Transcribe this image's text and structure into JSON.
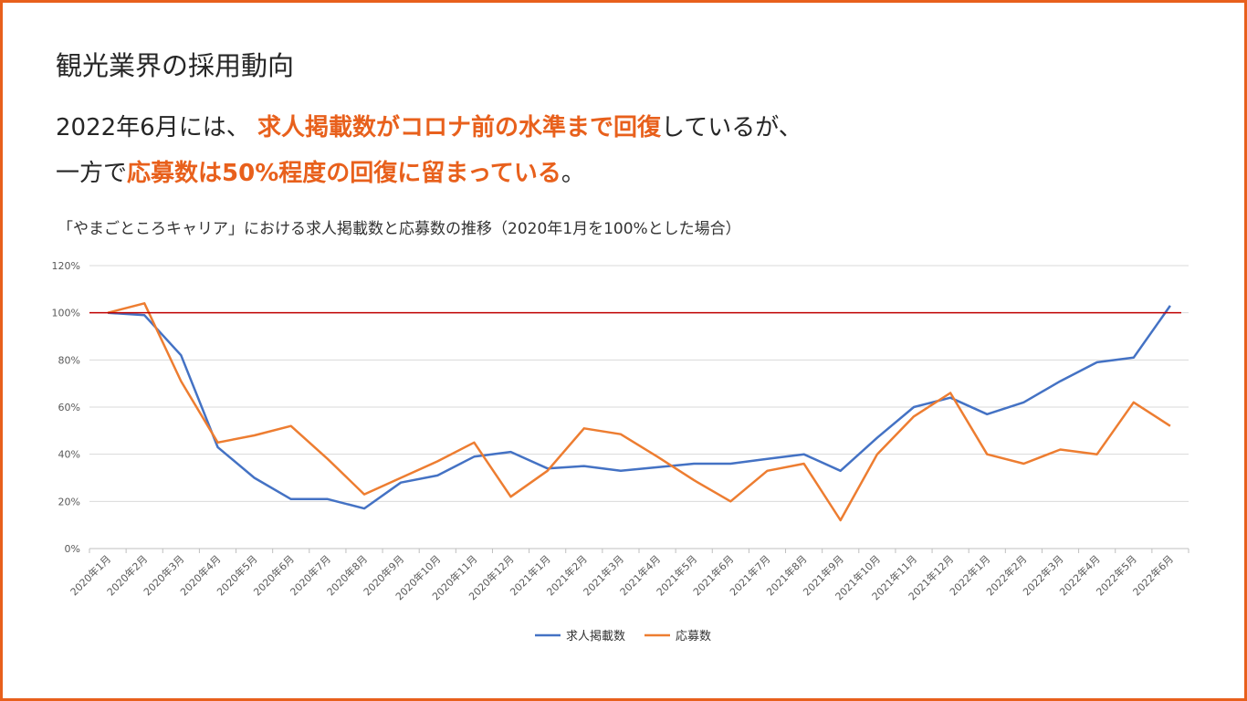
{
  "slide": {
    "title": "観光業界の採用動向",
    "headline1": {
      "pre": "2022年6月には、 ",
      "highlight": "求人掲載数がコロナ前の水準まで回復",
      "post": "しているが、"
    },
    "headline2": {
      "pre": "一方で",
      "highlight": "応募数は50%程度の回復に留まっている",
      "post": "。"
    },
    "colors": {
      "accent": "#e8601c",
      "border": "#e8601c"
    }
  },
  "chart_data": {
    "type": "line",
    "title": "「やまごところキャリア」における求人掲載数と応募数の推移（2020年1月を100%とした場合）",
    "xlabel": "",
    "ylabel": "",
    "ylim": [
      0,
      120
    ],
    "yticks": [
      "0%",
      "20%",
      "40%",
      "60%",
      "80%",
      "100%",
      "120%"
    ],
    "grid": true,
    "legend_position": "bottom",
    "categories": [
      "2020年1月",
      "2020年2月",
      "2020年3月",
      "2020年4月",
      "2020年5月",
      "2020年6月",
      "2020年7月",
      "2020年8月",
      "2020年9月",
      "2020年10月",
      "2020年11月",
      "2020年12月",
      "2021年1月",
      "2021年2月",
      "2021年3月",
      "2021年4月",
      "2021年5月",
      "2021年6月",
      "2021年7月",
      "2021年8月",
      "2021年9月",
      "2021年10月",
      "2021年11月",
      "2021年12月",
      "2022年1月",
      "2022年2月",
      "2022年3月",
      "2022年4月",
      "2022年5月",
      "2022年6月"
    ],
    "series": [
      {
        "name": "求人掲載数",
        "color": "#4472c4",
        "values": [
          100,
          99,
          82,
          43,
          30,
          21,
          21,
          17,
          28,
          31,
          39,
          41,
          34,
          35,
          33,
          34.5,
          36,
          36,
          38,
          40,
          33,
          47,
          60,
          64,
          57,
          62,
          71,
          79,
          81,
          103
        ]
      },
      {
        "name": "応募数",
        "color": "#ed7d31",
        "values": [
          100,
          104,
          71,
          45,
          48,
          52,
          38,
          23,
          30,
          37,
          45,
          22,
          33,
          51,
          48.5,
          39,
          29,
          20,
          33,
          36,
          12,
          40,
          56,
          66,
          40,
          36,
          42,
          40,
          62,
          52
        ]
      }
    ],
    "reference_line": {
      "value": 100,
      "color": "#c00000"
    }
  }
}
